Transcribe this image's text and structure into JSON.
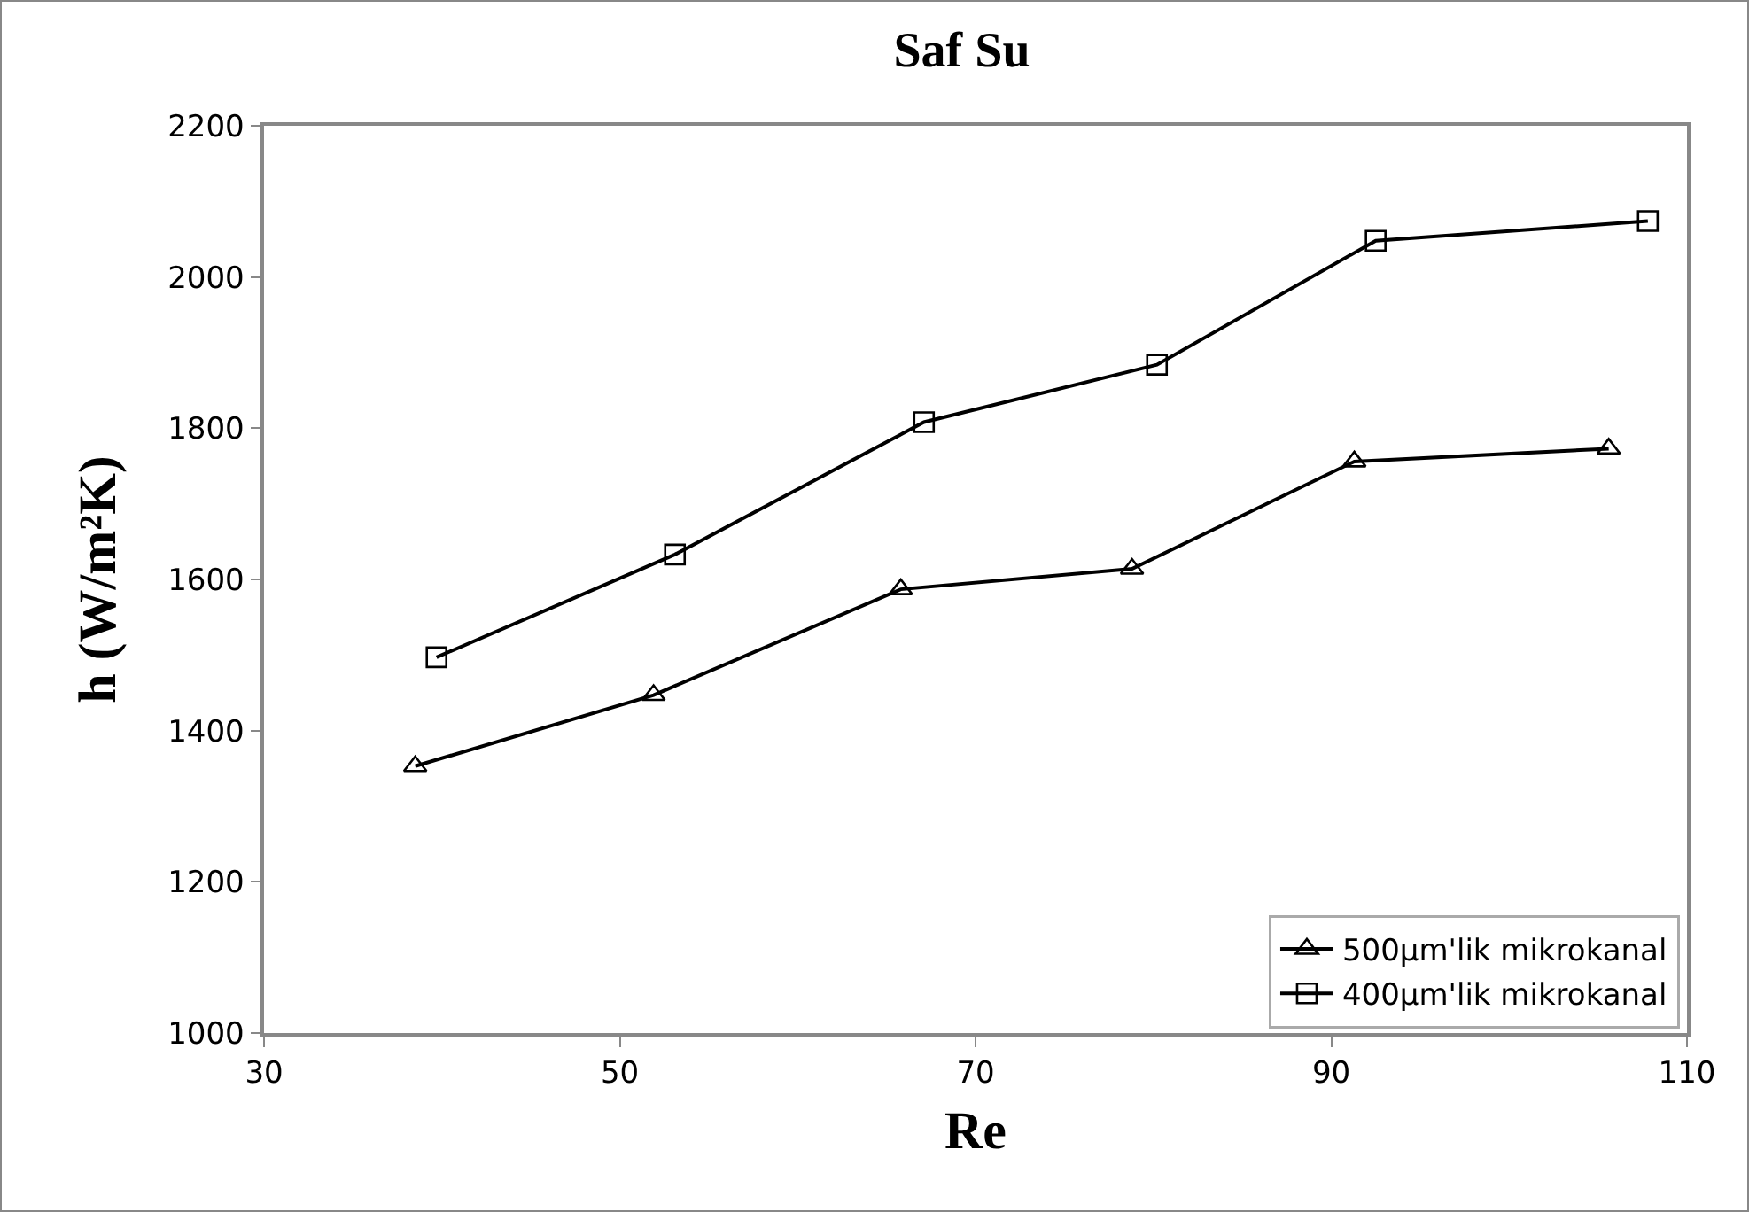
{
  "chart_data": {
    "type": "line",
    "title": "Saf Su",
    "xlabel": "Re",
    "ylabel": "h (W/m²K)",
    "xlim": [
      30,
      110
    ],
    "xticks": [
      30,
      50,
      70,
      90,
      110
    ],
    "ylim": [
      1000,
      2200
    ],
    "yticks": [
      1000,
      1200,
      1400,
      1600,
      1800,
      2000,
      2200
    ],
    "grid": false,
    "legend": "bottom right",
    "line_style": "solid",
    "series": [
      {
        "name": "500µm'lik mikrokanal",
        "color": "#000000",
        "marker": "triangle",
        "x": [
          38.5,
          51.9,
          65.8,
          78.8,
          91.3,
          105.6
        ],
        "values": [
          1353,
          1447,
          1587,
          1614,
          1756,
          1773
        ]
      },
      {
        "name": "400µm'lik mikrokanal",
        "color": "#000000",
        "marker": "square",
        "x": [
          39.7,
          53.1,
          67.1,
          80.2,
          92.5,
          107.8
        ],
        "values": [
          1497,
          1633,
          1808,
          1884,
          2048,
          2074
        ]
      }
    ]
  }
}
